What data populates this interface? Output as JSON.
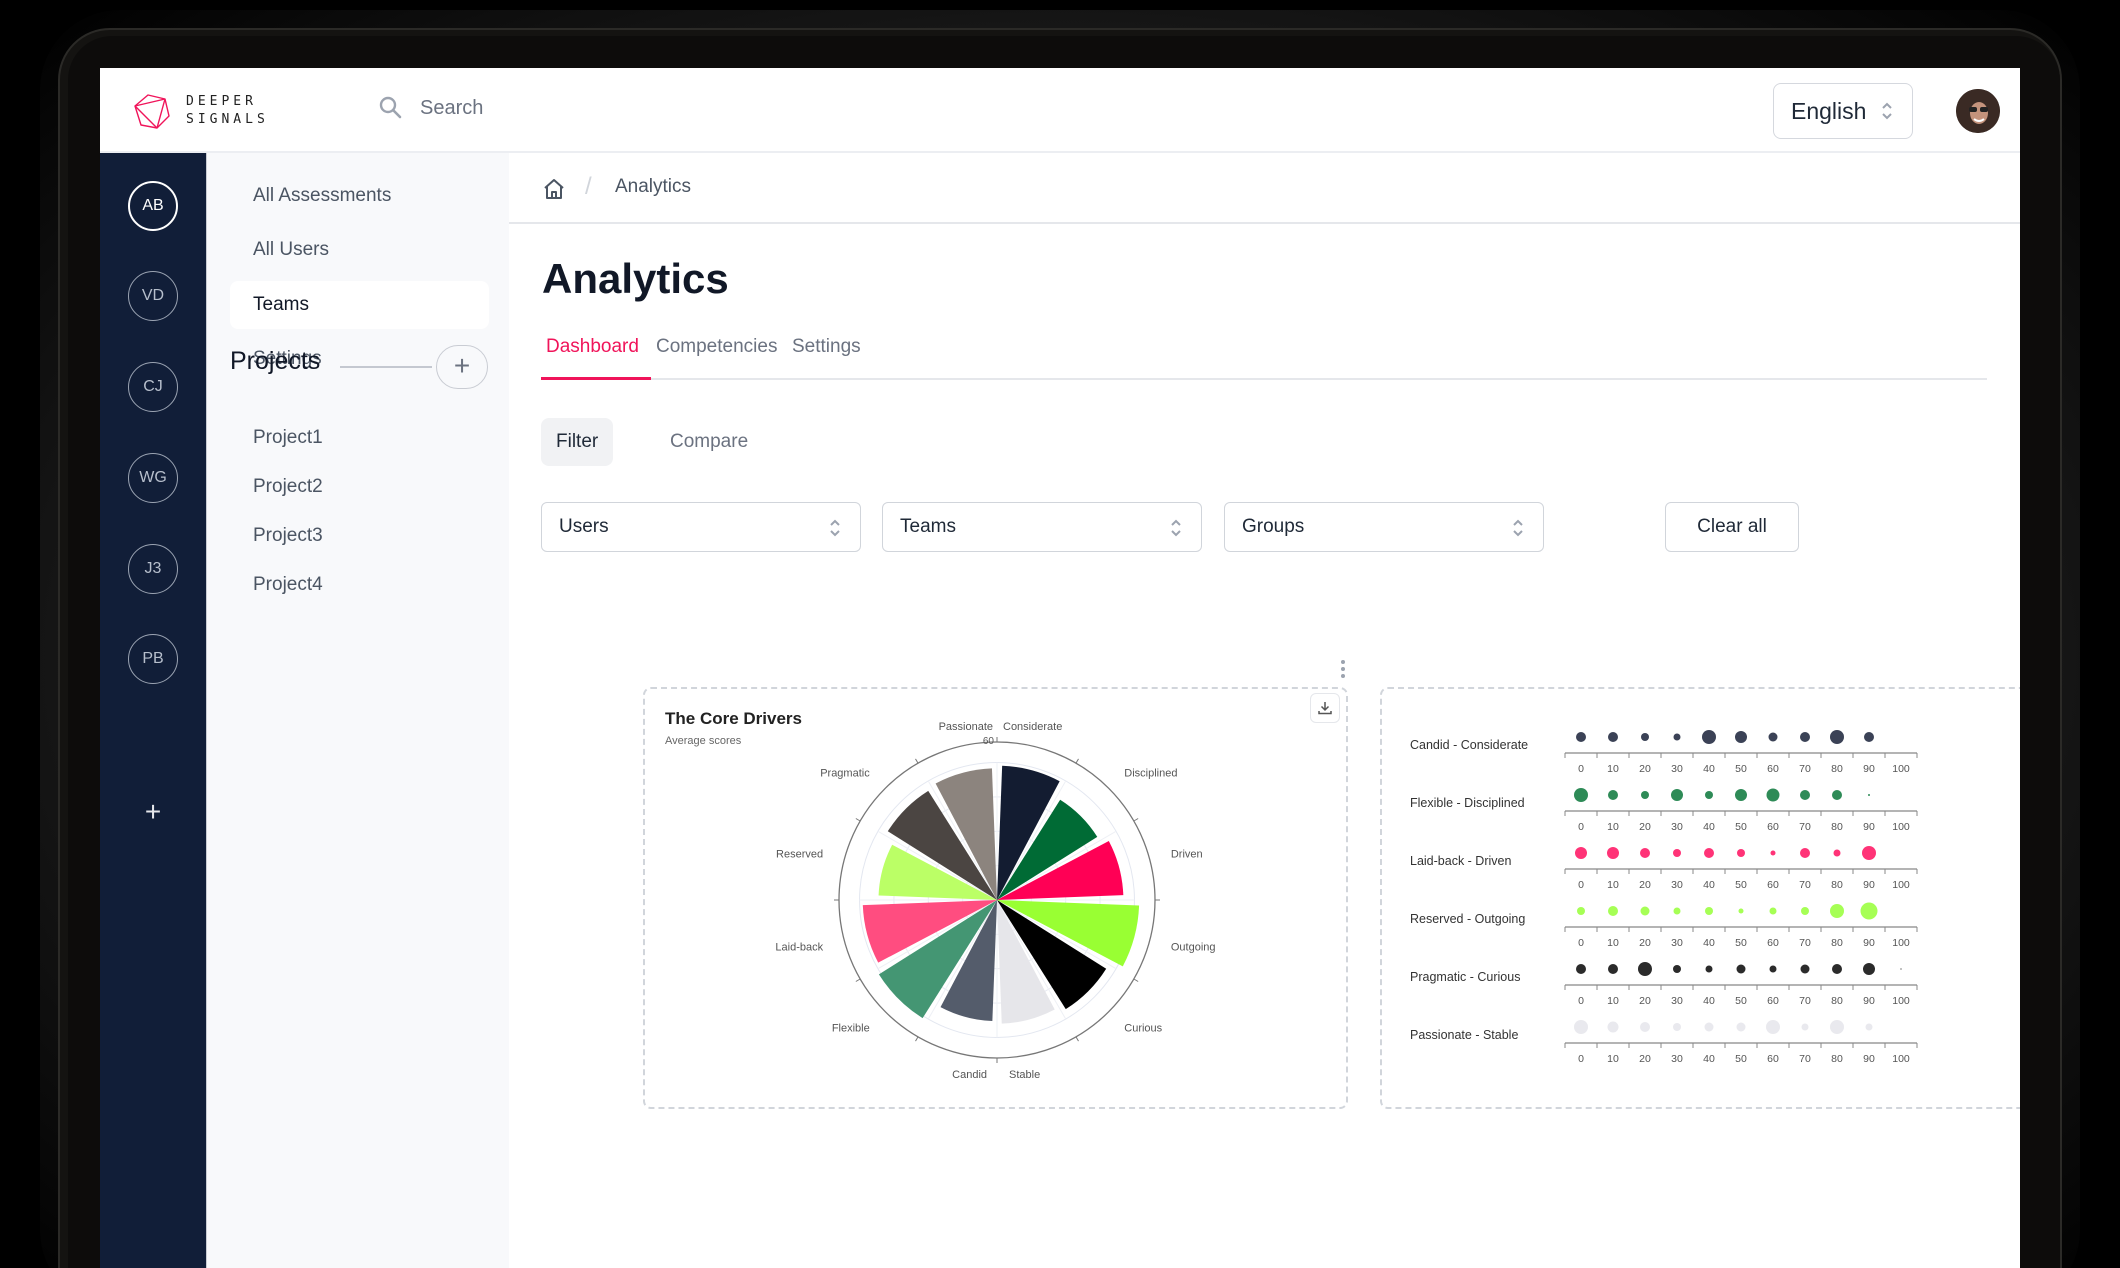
{
  "header": {
    "logo_line1": "DEEPER",
    "logo_line2": "SIGNALS",
    "search_placeholder": "Search",
    "language": "English",
    "logo_color": "#f0145a"
  },
  "rail": {
    "items": [
      "AB",
      "VD",
      "CJ",
      "WG",
      "J3",
      "PB"
    ],
    "add_label": "+"
  },
  "sidebar": {
    "items": [
      {
        "label": "All Assessments"
      },
      {
        "label": "All Users"
      },
      {
        "label": "Teams",
        "active": true
      },
      {
        "label": "Settings"
      }
    ],
    "projects_title": "Projects",
    "projects_add": "+",
    "projects": [
      "Project1",
      "Project2",
      "Project3",
      "Project4"
    ]
  },
  "breadcrumb": {
    "current": "Analytics",
    "separator": "/"
  },
  "page": {
    "title": "Analytics",
    "tabs": [
      {
        "label": "Dashboard",
        "active": true
      },
      {
        "label": "Competencies"
      },
      {
        "label": "Settings"
      }
    ],
    "subtabs": [
      {
        "label": "Filter",
        "active": true
      },
      {
        "label": "Compare"
      }
    ],
    "filters": {
      "users": "Users",
      "teams": "Teams",
      "groups": "Groups",
      "clear_all": "Clear all"
    },
    "accent_color": "#f0145a"
  },
  "chart_data": [
    {
      "type": "polar-bar",
      "title": "The Core Drivers",
      "subtitle": "Average scores",
      "radial_max_label": "60",
      "rmax": 60,
      "categories": [
        "Considerate",
        "Disciplined",
        "Driven",
        "Outgoing",
        "Curious",
        "Stable",
        "Candid",
        "Flexible",
        "Laid-back",
        "Reserved",
        "Pragmatic",
        "Passionate"
      ],
      "values": [
        51,
        45,
        48,
        54,
        49,
        47,
        46,
        53,
        51,
        45,
        49,
        50
      ],
      "colors": [
        "#131c31",
        "#006b35",
        "#ff0055",
        "#99ff33",
        "#000000",
        "#e6e6ea",
        "#545c6b",
        "#449673",
        "#ff4d80",
        "#bbff66",
        "#4b4542",
        "#8c847e"
      ]
    },
    {
      "type": "dot-strip",
      "x_ticks": [
        0,
        10,
        20,
        30,
        40,
        50,
        60,
        70,
        80,
        90,
        100
      ],
      "xlim": [
        0,
        100
      ],
      "series": [
        {
          "name": "Candid - Considerate",
          "color": "#3b4256",
          "sizes": [
            5,
            5,
            4,
            3.5,
            7,
            6,
            4.5,
            5,
            7,
            5,
            0
          ]
        },
        {
          "name": "Flexible - Disciplined",
          "color": "#2e8b57",
          "sizes": [
            7,
            5,
            4,
            6,
            4,
            6,
            6.5,
            5,
            5,
            1,
            0
          ]
        },
        {
          "name": "Laid-back - Driven",
          "color": "#ff3377",
          "sizes": [
            6,
            6,
            5,
            4,
            5,
            4,
            2.5,
            5,
            3.5,
            7,
            0
          ]
        },
        {
          "name": "Reserved - Outgoing",
          "color": "#a6ff55",
          "sizes": [
            4,
            5,
            4.5,
            3.5,
            4,
            2.5,
            3.5,
            4,
            7,
            8.5,
            0
          ]
        },
        {
          "name": "Pragmatic - Curious",
          "color": "#2b2b2b",
          "sizes": [
            5,
            5,
            7,
            4,
            3.5,
            4.5,
            3.5,
            4.5,
            5,
            6,
            0.6
          ]
        },
        {
          "name": "Passionate - Stable",
          "color": "#e9e9ee",
          "sizes": [
            7,
            5.5,
            5,
            4,
            4.5,
            4.5,
            7,
            3.5,
            7,
            3.5,
            0
          ]
        }
      ]
    }
  ]
}
